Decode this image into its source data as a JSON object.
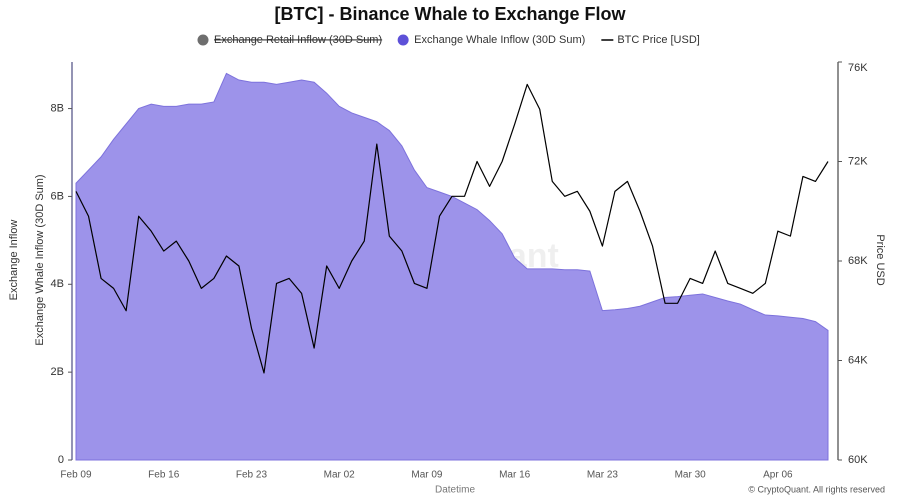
{
  "chart_data": {
    "type": "area-line",
    "title": "[BTC] - Binance Whale to Exchange Flow",
    "y_label_outer": "Exchange Inflow",
    "y_label": "Exchange Whale Inflow (30D Sum)",
    "y2_label": "Price USD",
    "x_label": "Datetime",
    "watermark": "CryptoQuant",
    "credit": "© CryptoQuant. All rights reserved",
    "x": [
      "Feb 09",
      "Feb 10",
      "Feb 11",
      "Feb 12",
      "Feb 13",
      "Feb 14",
      "Feb 15",
      "Feb 16",
      "Feb 17",
      "Feb 18",
      "Feb 19",
      "Feb 20",
      "Feb 21",
      "Feb 22",
      "Feb 23",
      "Feb 24",
      "Feb 25",
      "Feb 26",
      "Feb 27",
      "Feb 28",
      "Mar 01",
      "Mar 02",
      "Mar 03",
      "Mar 04",
      "Mar 05",
      "Mar 06",
      "Mar 07",
      "Mar 08",
      "Mar 09",
      "Mar 10",
      "Mar 11",
      "Mar 12",
      "Mar 13",
      "Mar 14",
      "Mar 15",
      "Mar 16",
      "Mar 17",
      "Mar 18",
      "Mar 19",
      "Mar 20",
      "Mar 21",
      "Mar 22",
      "Mar 23",
      "Mar 24",
      "Mar 25",
      "Mar 26",
      "Mar 27",
      "Mar 28",
      "Mar 29",
      "Mar 30",
      "Mar 31",
      "Apr 01",
      "Apr 02",
      "Apr 03",
      "Apr 04",
      "Apr 05",
      "Apr 06",
      "Apr 07",
      "Apr 08",
      "Apr 09",
      "Apr 10"
    ],
    "xticks": [
      "Feb 09",
      "Feb 16",
      "Feb 23",
      "Mar 02",
      "Mar 09",
      "Mar 16",
      "Mar 23",
      "Mar 30",
      "Apr 06"
    ],
    "ylim": [
      0,
      9.06
    ],
    "yticks": [
      0,
      {
        "value": 2,
        "label": "2B"
      },
      {
        "value": 4,
        "label": "4B"
      },
      {
        "value": 6,
        "label": "6B"
      },
      {
        "value": 8,
        "label": "8B"
      }
    ],
    "y2lim": [
      60000,
      76000
    ],
    "y2ticks": [
      {
        "value": 60000,
        "label": "60K"
      },
      {
        "value": 64000,
        "label": "64K"
      },
      {
        "value": 68000,
        "label": "68K"
      },
      {
        "value": 72000,
        "label": "72K"
      },
      {
        "value": 76000,
        "label": "76K"
      }
    ],
    "series": [
      {
        "name": "Exchange Retail Inflow (30D Sum)",
        "color": "#6e6e6e",
        "visible": false,
        "kind": "area",
        "values": [
          null,
          null,
          null,
          null,
          null,
          null,
          null,
          null,
          null,
          null,
          null,
          null,
          null,
          null,
          null,
          null,
          null,
          null,
          null,
          null,
          null,
          null,
          null,
          null,
          null,
          null,
          null,
          null,
          null,
          null,
          null,
          null,
          null,
          null,
          null,
          null,
          null,
          null,
          null,
          null,
          null,
          null,
          null,
          null,
          null,
          null,
          null,
          null,
          null,
          null,
          null,
          null,
          null,
          null,
          null,
          null,
          null,
          null,
          null,
          null,
          null
        ]
      },
      {
        "name": "Exchange Whale Inflow (30D Sum)",
        "color": "#9d93ea",
        "visible": true,
        "kind": "area",
        "values": [
          6.3,
          6.6,
          6.9,
          7.3,
          7.65,
          8.0,
          8.1,
          8.05,
          8.05,
          8.1,
          8.1,
          8.15,
          8.8,
          8.65,
          8.6,
          8.6,
          8.55,
          8.6,
          8.65,
          8.6,
          8.35,
          8.05,
          7.9,
          7.8,
          7.7,
          7.5,
          7.15,
          6.6,
          6.2,
          6.1,
          6.0,
          5.85,
          5.7,
          5.45,
          5.15,
          4.6,
          4.35,
          4.35,
          4.35,
          4.33,
          4.33,
          4.3,
          3.4,
          3.42,
          3.45,
          3.5,
          3.6,
          3.7,
          3.72,
          3.75,
          3.78,
          3.7,
          3.62,
          3.55,
          3.42,
          3.3,
          3.28,
          3.25,
          3.22,
          3.15,
          2.95
        ]
      },
      {
        "name": "BTC Price [USD]",
        "color": "#000000",
        "visible": true,
        "kind": "line",
        "axis": "y2",
        "values": [
          70800,
          69800,
          67300,
          66900,
          66000,
          69800,
          69200,
          68400,
          68800,
          68000,
          66900,
          67300,
          68200,
          67800,
          65300,
          63500,
          67100,
          67300,
          66700,
          64500,
          67800,
          66900,
          68000,
          68800,
          72700,
          69000,
          68400,
          67100,
          66900,
          69800,
          70600,
          70600,
          72000,
          71000,
          72000,
          73500,
          75100,
          74100,
          71200,
          70600,
          70800,
          70000,
          68600,
          70800,
          71200,
          70000,
          68600,
          66300,
          66300,
          67300,
          67100,
          68400,
          67100,
          66900,
          66700,
          67100,
          69200,
          69000,
          71400,
          71200,
          72000
        ]
      }
    ]
  }
}
